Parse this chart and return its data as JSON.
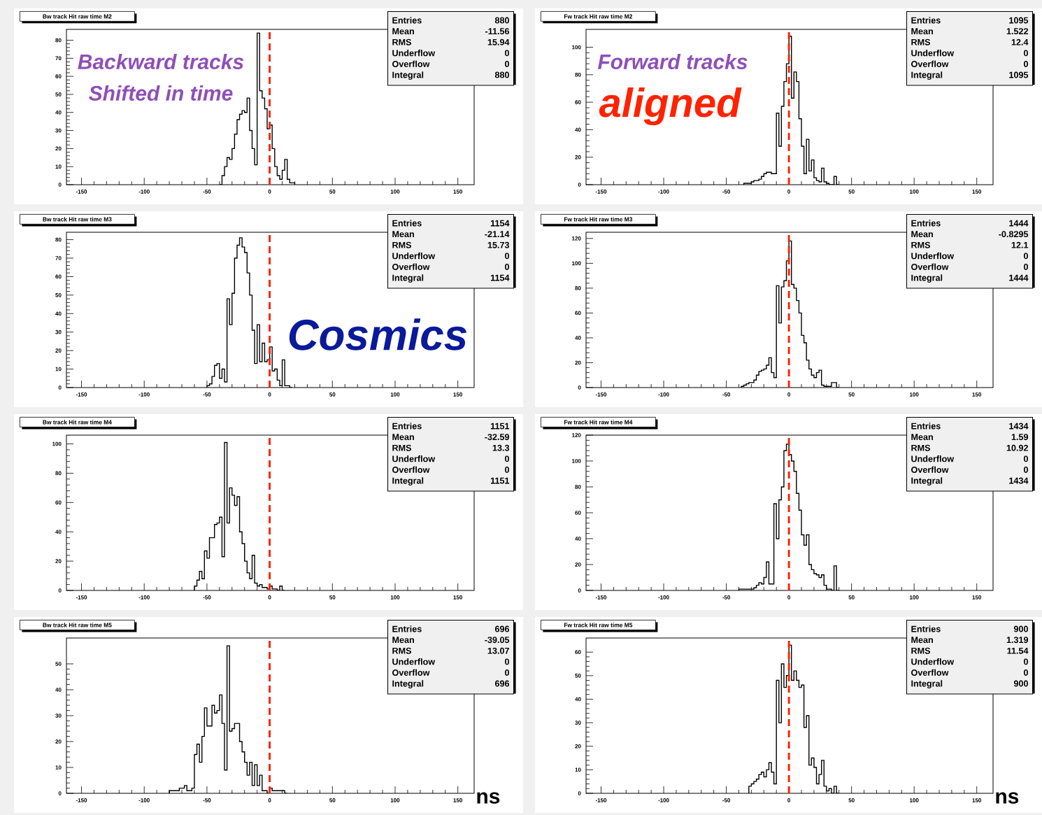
{
  "chart_data": [
    {
      "type": "histogram",
      "title": "Bw track Hit raw time M2",
      "color": "#000000",
      "bins": [
        -40,
        -38,
        -36,
        -34,
        -32,
        -30,
        -28,
        -26,
        -24,
        -22,
        -20,
        -18,
        -16,
        -14,
        -12,
        -10,
        -8,
        -6,
        -4,
        -2,
        0,
        2,
        4,
        6,
        8,
        10,
        12,
        14,
        16,
        18,
        20
      ],
      "values": [
        0,
        5,
        10,
        15,
        14,
        20,
        28,
        36,
        39,
        41,
        40,
        48,
        30,
        20,
        11,
        84,
        52,
        48,
        42,
        31,
        33,
        20,
        10,
        5,
        3,
        8,
        14,
        3,
        1,
        1
      ],
      "xlim": [
        -162,
        163
      ],
      "ylim": [
        0,
        86
      ],
      "xticks": [
        -150,
        -100,
        -50,
        0,
        50,
        100,
        150
      ],
      "yticks": [
        0,
        10,
        20,
        30,
        40,
        50,
        60,
        70,
        80
      ],
      "ref_lines": [
        {
          "axis": "x",
          "value": 0,
          "color": "#ff2200",
          "line_style": "dashed"
        }
      ],
      "annotations": [
        "Entries",
        "880",
        "Mean",
        "-11.56",
        "RMS",
        "15.94",
        "Underflow",
        "0",
        "Overflow",
        "0",
        "Integral",
        "880",
        "Backward tracks",
        "Shifted in time"
      ]
    },
    {
      "type": "histogram",
      "title": "Fw track Hit raw time M2",
      "color": "#000000",
      "bins": [
        -36,
        -34,
        -32,
        -30,
        -28,
        -26,
        -24,
        -22,
        -20,
        -18,
        -16,
        -14,
        -12,
        -10,
        -8,
        -6,
        -4,
        -2,
        0,
        2,
        4,
        6,
        8,
        10,
        12,
        14,
        16,
        18,
        20,
        22,
        24,
        26,
        28,
        30,
        32,
        34,
        36,
        38,
        40
      ],
      "values": [
        1,
        1,
        1,
        2,
        3,
        3,
        4,
        6,
        8,
        9,
        9,
        8,
        8,
        52,
        28,
        57,
        75,
        88,
        108,
        63,
        82,
        75,
        48,
        28,
        8,
        33,
        10,
        18,
        5,
        3,
        2,
        12,
        2,
        1,
        0,
        0,
        6,
        0
      ],
      "xlim": [
        -162,
        163
      ],
      "ylim": [
        0,
        113
      ],
      "xticks": [
        -150,
        -100,
        -50,
        0,
        50,
        100,
        150
      ],
      "yticks": [
        0,
        20,
        40,
        60,
        80,
        100
      ],
      "ref_lines": [
        {
          "axis": "x",
          "value": 0,
          "color": "#ff2200",
          "line_style": "dashed"
        }
      ],
      "annotations": [
        "Entries",
        "1095",
        "Mean",
        "1.522",
        "RMS",
        "12.4",
        "Underflow",
        "0",
        "Overflow",
        "0",
        "Integral",
        "1095",
        "Forward tracks",
        "aligned"
      ]
    },
    {
      "type": "histogram",
      "title": "Bw track Hit raw time M3",
      "color": "#000000",
      "bins": [
        -50,
        -48,
        -46,
        -44,
        -42,
        -40,
        -38,
        -36,
        -34,
        -32,
        -30,
        -28,
        -26,
        -24,
        -22,
        -20,
        -18,
        -16,
        -14,
        -12,
        -10,
        -8,
        -6,
        -4,
        -2,
        0,
        2,
        4,
        6,
        8,
        10,
        12,
        14,
        16,
        18
      ],
      "values": [
        1,
        2,
        6,
        12,
        13,
        5,
        10,
        3,
        48,
        34,
        51,
        70,
        77,
        81,
        76,
        73,
        62,
        50,
        31,
        13,
        34,
        14,
        24,
        14,
        15,
        22,
        9,
        10,
        4,
        1,
        15,
        1,
        1,
        0
      ],
      "xlim": [
        -162,
        163
      ],
      "ylim": [
        0,
        84
      ],
      "xticks": [
        -150,
        -100,
        -50,
        0,
        50,
        100,
        150
      ],
      "yticks": [
        0,
        10,
        20,
        30,
        40,
        50,
        60,
        70,
        80
      ],
      "ref_lines": [
        {
          "axis": "x",
          "value": 0,
          "color": "#ff2200",
          "line_style": "dashed"
        }
      ],
      "annotations": [
        "Entries",
        "1154",
        "Mean",
        "-21.14",
        "RMS",
        "15.73",
        "Underflow",
        "0",
        "Overflow",
        "0",
        "Integral",
        "1154"
      ]
    },
    {
      "type": "histogram",
      "title": "Fw track Hit raw time M3",
      "color": "#000000",
      "bins": [
        -38,
        -36,
        -34,
        -32,
        -30,
        -28,
        -26,
        -24,
        -22,
        -20,
        -18,
        -16,
        -14,
        -12,
        -10,
        -8,
        -6,
        -4,
        -2,
        0,
        2,
        4,
        6,
        8,
        10,
        12,
        14,
        16,
        18,
        20,
        22,
        24,
        26,
        28,
        30,
        32,
        34,
        36,
        38,
        40
      ],
      "values": [
        1,
        2,
        3,
        4,
        4,
        6,
        10,
        13,
        14,
        15,
        18,
        24,
        12,
        8,
        82,
        52,
        81,
        86,
        102,
        118,
        83,
        80,
        70,
        60,
        42,
        36,
        22,
        15,
        10,
        8,
        12,
        14,
        2,
        1,
        1,
        1,
        4,
        4,
        0
      ],
      "xlim": [
        -162,
        163
      ],
      "ylim": [
        0,
        125
      ],
      "xticks": [
        -150,
        -100,
        -50,
        0,
        50,
        100,
        150
      ],
      "yticks": [
        0,
        20,
        40,
        60,
        80,
        100,
        120
      ],
      "ref_lines": [
        {
          "axis": "x",
          "value": 0,
          "color": "#ff2200",
          "line_style": "dashed"
        }
      ],
      "annotations": [
        "Entries",
        "1444",
        "Mean",
        "-0.8295",
        "RMS",
        "12.1",
        "Underflow",
        "0",
        "Overflow",
        "0",
        "Integral",
        "1444",
        "Cosmics"
      ]
    },
    {
      "type": "histogram",
      "title": "Bw track Hit raw time M4",
      "color": "#000000",
      "bins": [
        -60,
        -58,
        -56,
        -54,
        -52,
        -50,
        -48,
        -46,
        -44,
        -42,
        -40,
        -38,
        -36,
        -34,
        -32,
        -30,
        -28,
        -26,
        -24,
        -22,
        -20,
        -18,
        -16,
        -14,
        -12,
        -10,
        -8,
        -6,
        -4,
        -2,
        0,
        2,
        4,
        6,
        8,
        10,
        12
      ],
      "values": [
        3,
        7,
        13,
        8,
        27,
        22,
        36,
        36,
        45,
        46,
        50,
        23,
        101,
        46,
        70,
        65,
        58,
        64,
        40,
        32,
        20,
        12,
        8,
        24,
        5,
        3,
        4,
        2,
        2,
        1,
        3,
        1,
        1,
        0,
        3,
        0
      ],
      "xlim": [
        -162,
        163
      ],
      "ylim": [
        0,
        106
      ],
      "xticks": [
        -150,
        -100,
        -50,
        0,
        50,
        100,
        150
      ],
      "yticks": [
        0,
        20,
        40,
        60,
        80,
        100
      ],
      "ref_lines": [
        {
          "axis": "x",
          "value": 0,
          "color": "#ff2200",
          "line_style": "dashed"
        }
      ],
      "annotations": [
        "Entries",
        "1151",
        "Mean",
        "-32.59",
        "RMS",
        "13.3",
        "Underflow",
        "0",
        "Overflow",
        "0",
        "Integral",
        "1151"
      ]
    },
    {
      "type": "histogram",
      "title": "Fw track Hit raw time M4",
      "color": "#000000",
      "bins": [
        -40,
        -38,
        -36,
        -34,
        -32,
        -30,
        -28,
        -26,
        -24,
        -22,
        -20,
        -18,
        -16,
        -14,
        -12,
        -10,
        -8,
        -6,
        -4,
        -2,
        0,
        2,
        4,
        6,
        8,
        10,
        12,
        14,
        16,
        18,
        20,
        22,
        24,
        26,
        28,
        30,
        32,
        34,
        36,
        38,
        40
      ],
      "values": [
        1,
        1,
        1,
        1,
        1,
        1,
        2,
        4,
        6,
        5,
        10,
        22,
        5,
        5,
        67,
        40,
        70,
        80,
        108,
        113,
        105,
        100,
        92,
        75,
        62,
        43,
        35,
        43,
        20,
        16,
        13,
        12,
        10,
        12,
        4,
        1,
        1,
        0,
        19,
        0
      ],
      "xlim": [
        -162,
        163
      ],
      "ylim": [
        0,
        120
      ],
      "xticks": [
        -150,
        -100,
        -50,
        0,
        50,
        100,
        150
      ],
      "yticks": [
        0,
        20,
        40,
        60,
        80,
        100,
        120
      ],
      "ref_lines": [
        {
          "axis": "x",
          "value": 0,
          "color": "#ff2200",
          "line_style": "dashed"
        }
      ],
      "annotations": [
        "Entries",
        "1434",
        "Mean",
        "1.59",
        "RMS",
        "10.92",
        "Underflow",
        "0",
        "Overflow",
        "0",
        "Integral",
        "1434"
      ]
    },
    {
      "type": "histogram",
      "title": "Bw track Hit raw time M5",
      "color": "#000000",
      "xlabel": "ns",
      "bins": [
        -80,
        -78,
        -76,
        -74,
        -72,
        -70,
        -68,
        -66,
        -64,
        -62,
        -60,
        -58,
        -56,
        -54,
        -52,
        -50,
        -48,
        -46,
        -44,
        -42,
        -40,
        -38,
        -36,
        -34,
        -32,
        -30,
        -28,
        -26,
        -24,
        -22,
        -20,
        -18,
        -16,
        -14,
        -12,
        -10,
        -8,
        -6,
        -4,
        -2,
        0,
        2,
        4,
        6,
        8,
        10,
        12,
        14
      ],
      "values": [
        1,
        1,
        1,
        1,
        2,
        2,
        3,
        1,
        1,
        2,
        15,
        19,
        12,
        22,
        33,
        26,
        26,
        34,
        31,
        32,
        38,
        27,
        9,
        57,
        24,
        25,
        27,
        27,
        20,
        16,
        12,
        7,
        12,
        3,
        11,
        3,
        7,
        1,
        1,
        0,
        2,
        1,
        1,
        1,
        1,
        1,
        0
      ],
      "xlim": [
        -162,
        163
      ],
      "ylim": [
        0,
        60
      ],
      "xticks": [
        -150,
        -100,
        -50,
        0,
        50,
        100,
        150
      ],
      "yticks": [
        0,
        10,
        20,
        30,
        40,
        50
      ],
      "ref_lines": [
        {
          "axis": "x",
          "value": 0,
          "color": "#ff2200",
          "line_style": "dashed"
        }
      ],
      "annotations": [
        "Entries",
        "696",
        "Mean",
        "-39.05",
        "RMS",
        "13.07",
        "Underflow",
        "0",
        "Overflow",
        "0",
        "Integral",
        "696"
      ]
    },
    {
      "type": "histogram",
      "title": "Fw track Hit raw time M5",
      "color": "#000000",
      "xlabel": "ns",
      "bins": [
        -32,
        -30,
        -28,
        -26,
        -24,
        -22,
        -20,
        -18,
        -16,
        -14,
        -12,
        -10,
        -8,
        -6,
        -4,
        -2,
        0,
        2,
        4,
        6,
        8,
        10,
        12,
        14,
        16,
        18,
        20,
        22,
        24,
        26,
        28,
        30,
        32,
        34,
        36,
        38,
        40
      ],
      "values": [
        3,
        4,
        5,
        6,
        8,
        9,
        7,
        10,
        13,
        9,
        4,
        48,
        30,
        55,
        45,
        50,
        63,
        48,
        52,
        48,
        45,
        46,
        28,
        33,
        12,
        15,
        11,
        4,
        8,
        14,
        3,
        1,
        2,
        0,
        3,
        0
      ],
      "xlim": [
        -162,
        163
      ],
      "ylim": [
        0,
        66
      ],
      "xticks": [
        -150,
        -100,
        -50,
        0,
        50,
        100,
        150
      ],
      "yticks": [
        0,
        10,
        20,
        30,
        40,
        50,
        60
      ],
      "ref_lines": [
        {
          "axis": "x",
          "value": 0,
          "color": "#ff2200",
          "line_style": "dashed"
        }
      ],
      "annotations": [
        "Entries",
        "900",
        "Mean",
        "1.319",
        "RMS",
        "11.54",
        "Underflow",
        "0",
        "Overflow",
        "0",
        "Integral",
        "900"
      ]
    }
  ]
}
